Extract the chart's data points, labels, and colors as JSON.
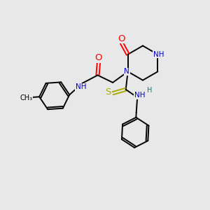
{
  "bg": "#e8e8e8",
  "bond_color": "#000000",
  "N_color": "#0000cc",
  "O_color": "#ff0000",
  "S_color": "#aaaa00",
  "H_color": "#008080",
  "C_color": "#000000",
  "lw": 1.4,
  "fs": 7.5,
  "xlim": [
    0,
    10
  ],
  "ylim": [
    0,
    10
  ]
}
